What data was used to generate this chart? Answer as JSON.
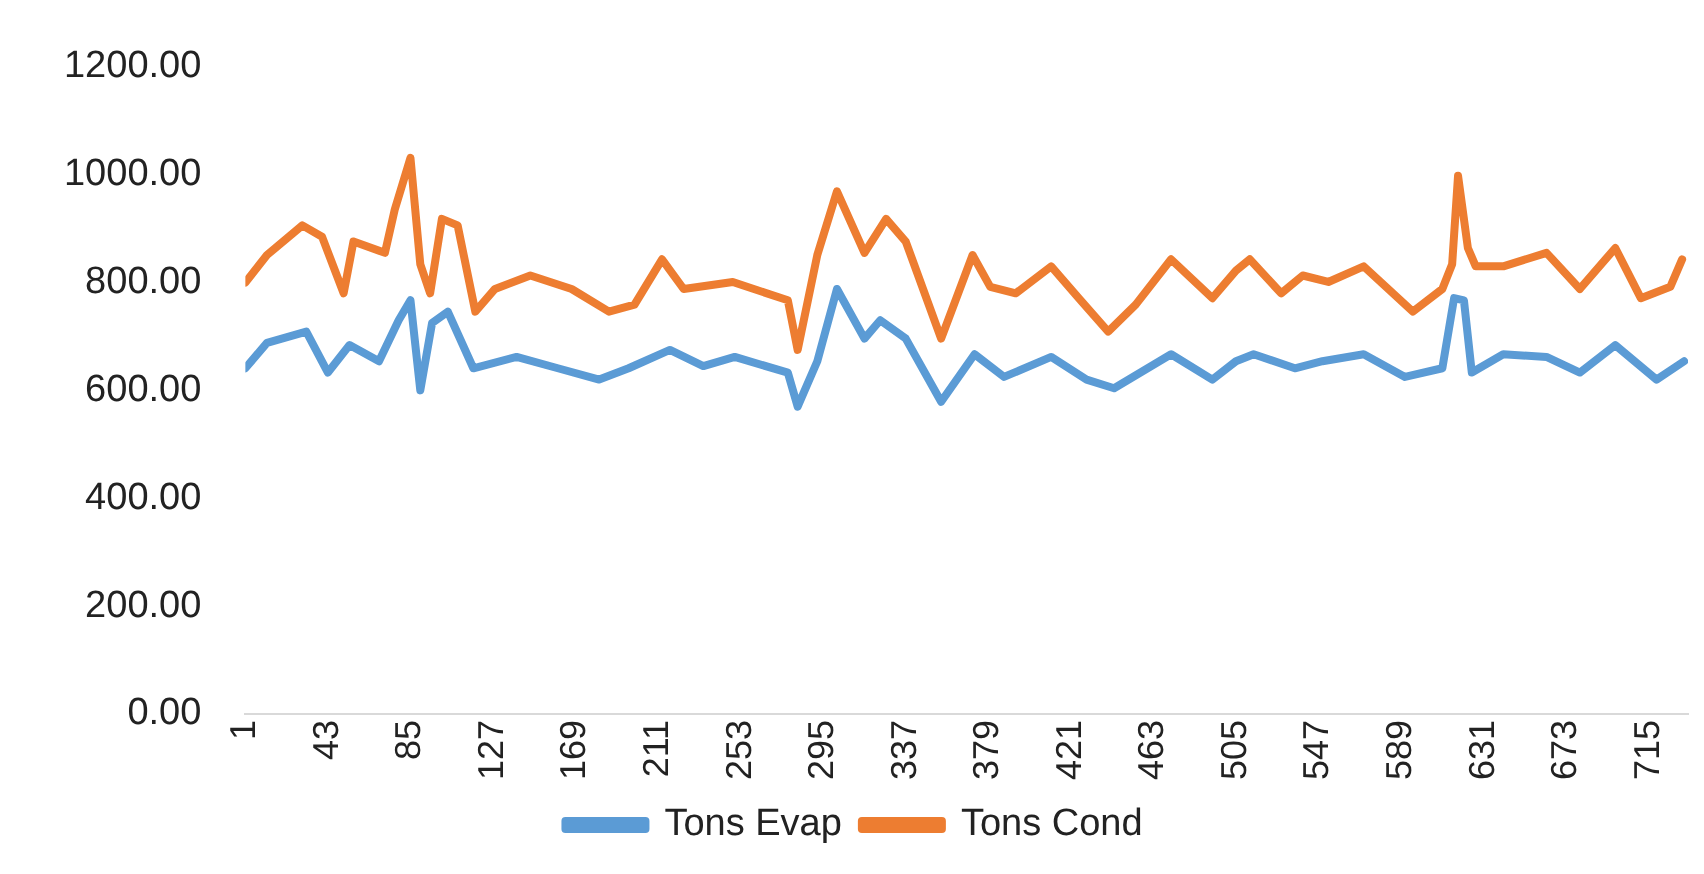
{
  "chart_data": {
    "type": "line",
    "legend": "bottom",
    "grid": false,
    "marker": "none",
    "line_style": "solid",
    "xlim": [
      1,
      735
    ],
    "xticks": [
      1,
      43,
      85,
      127,
      169,
      211,
      253,
      295,
      337,
      379,
      421,
      463,
      505,
      547,
      589,
      631,
      673,
      715
    ],
    "ylim": [
      0,
      1200
    ],
    "yticks": [
      {
        "value": 0,
        "label": "0.00"
      },
      {
        "value": 200,
        "label": "200.00"
      },
      {
        "value": 400,
        "label": "400.00"
      },
      {
        "value": 600,
        "label": "600.00"
      },
      {
        "value": 800,
        "label": "800.00"
      },
      {
        "value": 1000,
        "label": "1000.00"
      },
      {
        "value": 1200,
        "label": "1200.00"
      }
    ],
    "series": [
      {
        "name": "Tons Evap",
        "color": "#5b9bd5",
        "x": [
          1,
          12,
          32,
          43,
          54,
          69,
          79,
          85,
          90,
          96,
          104,
          117,
          139,
          160,
          181,
          196,
          217,
          234,
          250,
          277,
          282,
          292,
          302,
          316,
          324,
          337,
          355,
          372,
          387,
          411,
          429,
          443,
          472,
          493,
          505,
          514,
          535,
          549,
          570,
          591,
          610,
          616,
          621,
          625,
          641,
          663,
          680,
          698,
          719,
          733
        ],
        "values": [
          641,
          688,
          709,
          633,
          684,
          654,
          730,
          767,
          600,
          725,
          746,
          641,
          662,
          641,
          620,
          641,
          675,
          645,
          662,
          633,
          570,
          654,
          788,
          696,
          730,
          696,
          579,
          667,
          625,
          662,
          620,
          604,
          667,
          620,
          654,
          667,
          641,
          654,
          667,
          625,
          641,
          771,
          767,
          633,
          667,
          662,
          633,
          684,
          620,
          654
        ]
      },
      {
        "name": "Tons Cond",
        "color": "#ed7d31",
        "x": [
          1,
          12,
          30,
          40,
          51,
          56,
          72,
          77,
          85,
          90,
          95,
          101,
          109,
          118,
          128,
          146,
          167,
          186,
          199,
          213,
          224,
          249,
          277,
          282,
          292,
          302,
          316,
          327,
          337,
          355,
          371,
          380,
          393,
          411,
          425,
          440,
          454,
          472,
          493,
          505,
          512,
          528,
          539,
          552,
          570,
          595,
          610,
          615,
          618,
          623,
          627,
          641,
          663,
          680,
          698,
          711,
          726,
          732
        ],
        "values": [
          800,
          851,
          906,
          885,
          780,
          876,
          855,
          935,
          1031,
          834,
          780,
          918,
          906,
          746,
          788,
          813,
          788,
          746,
          759,
          843,
          788,
          801,
          767,
          675,
          851,
          969,
          855,
          918,
          876,
          696,
          851,
          792,
          780,
          830,
          771,
          709,
          759,
          843,
          771,
          822,
          843,
          780,
          813,
          801,
          830,
          746,
          788,
          834,
          998,
          864,
          830,
          830,
          855,
          788,
          864,
          771,
          792,
          843
        ]
      }
    ]
  }
}
